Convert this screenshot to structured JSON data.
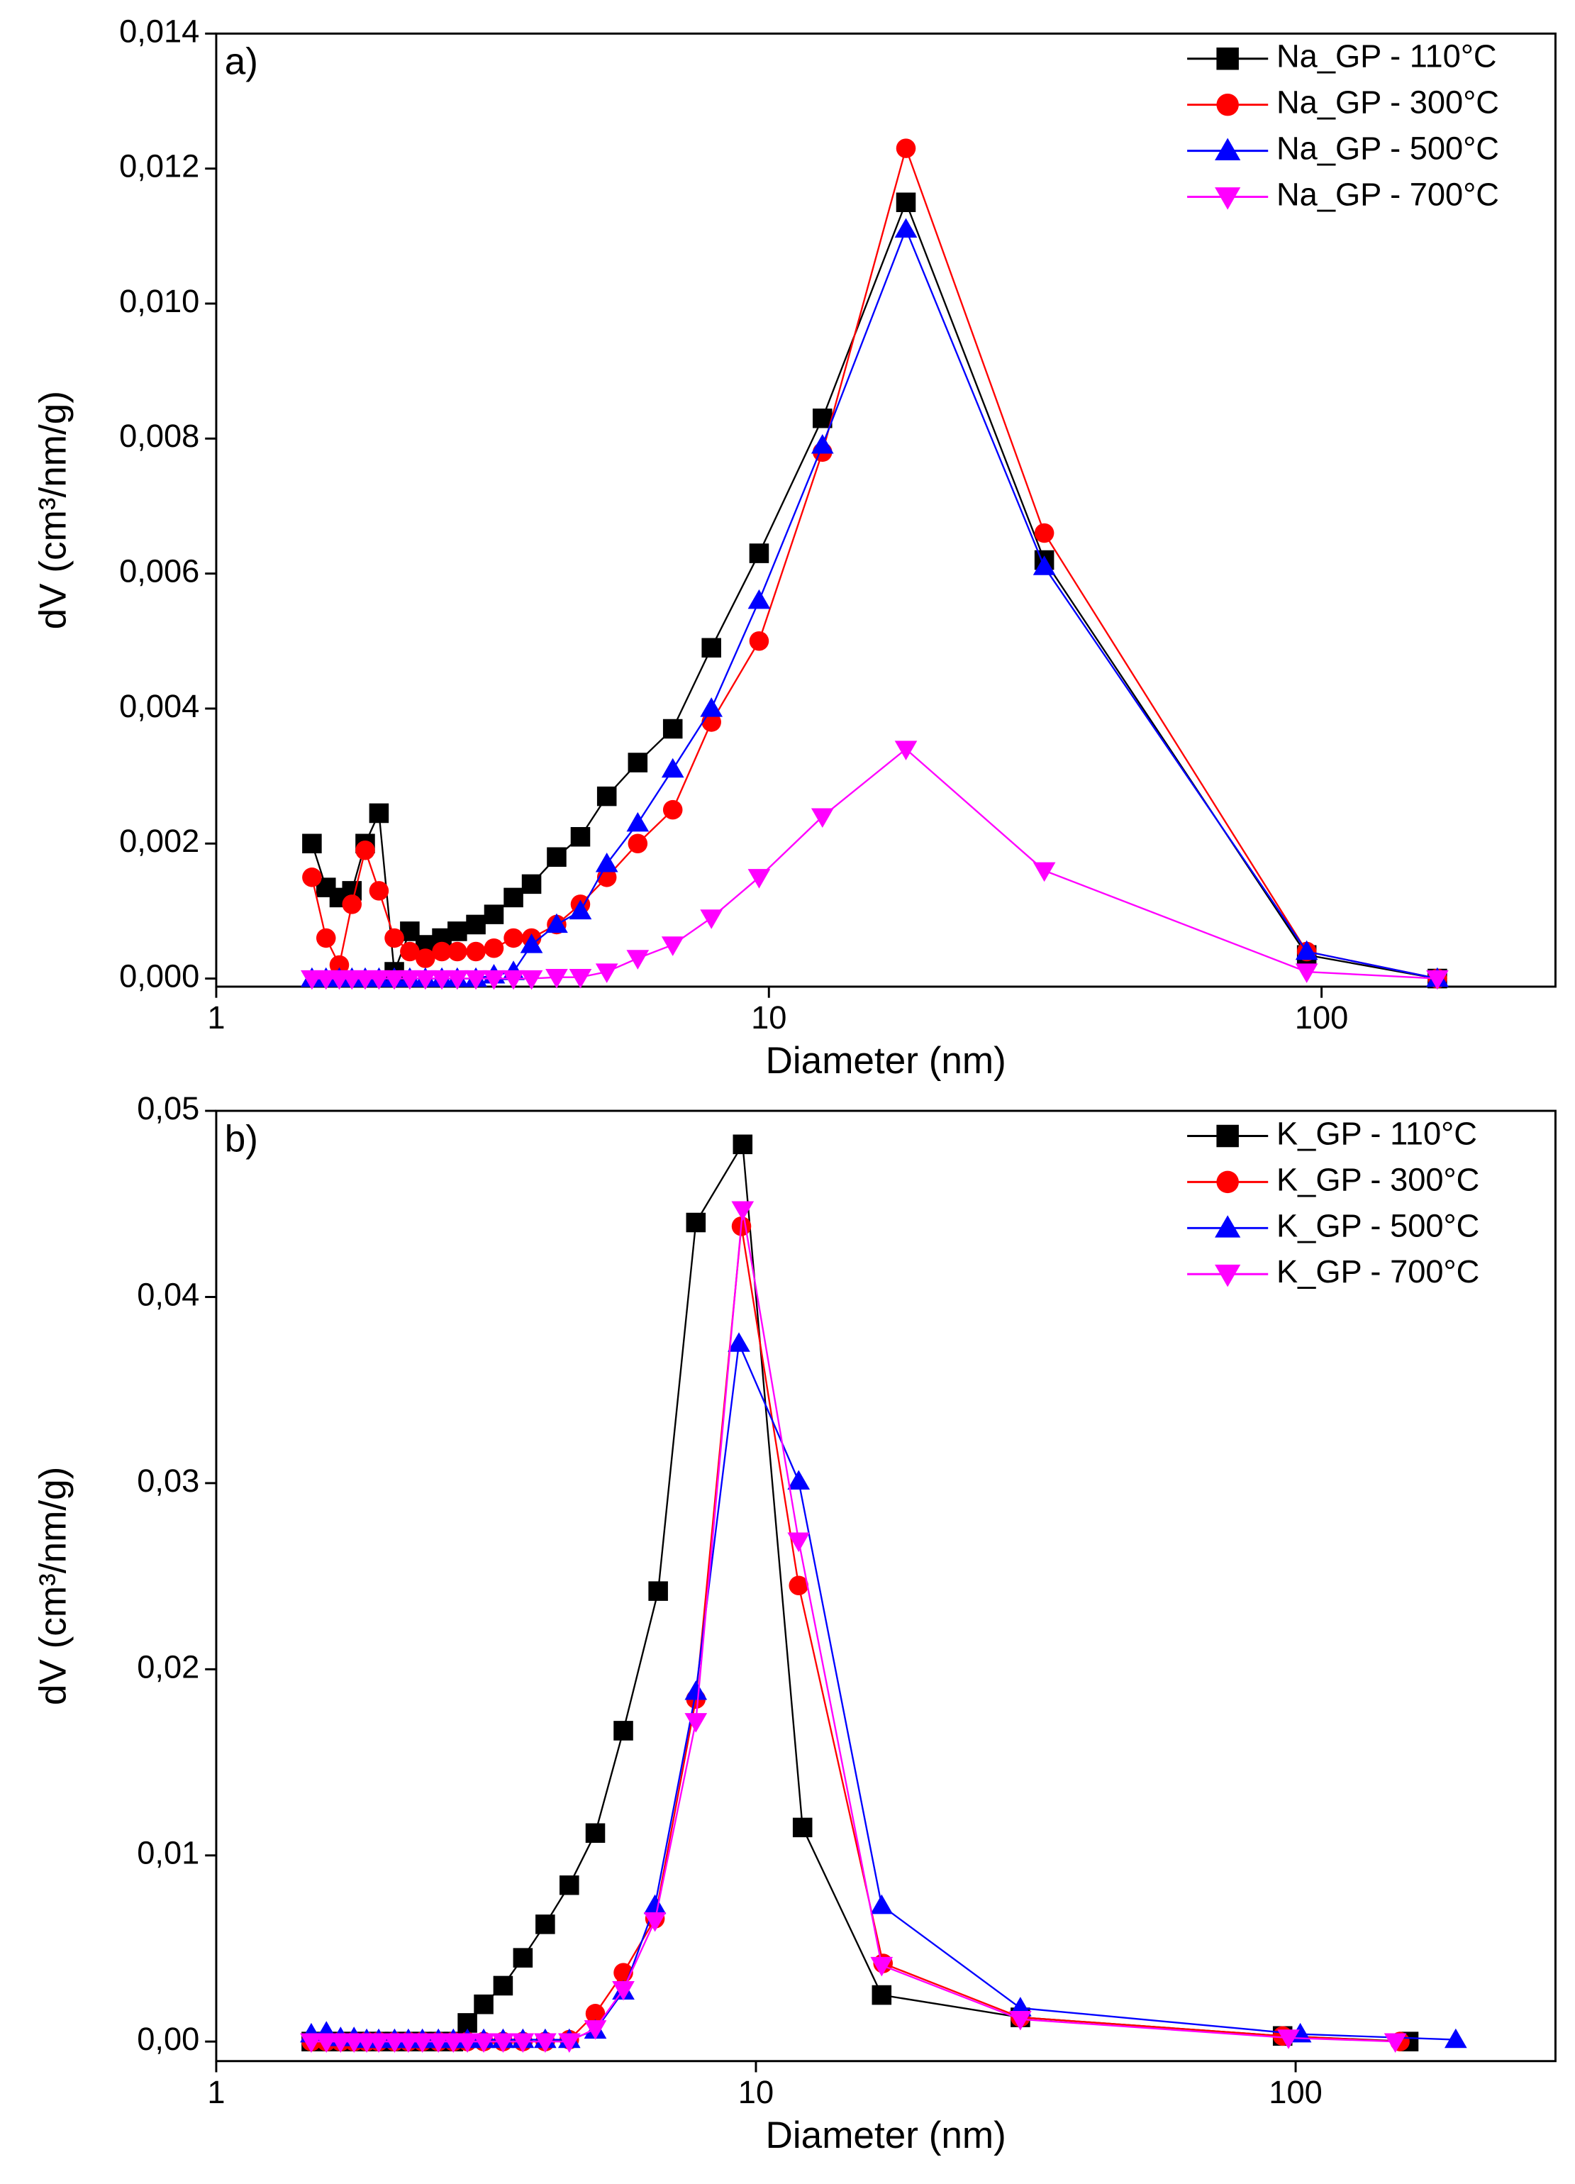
{
  "chart_data": [
    {
      "type": "line",
      "annotation": "a)",
      "x_label": "Diameter (nm)",
      "y_label": "dV (cm³/nm/g)",
      "log_x": true,
      "xlim": [
        1,
        265
      ],
      "xticks": [
        1,
        10,
        100
      ],
      "ylim": [
        -0.00012,
        0.014
      ],
      "yticks": [
        {
          "value": 0,
          "label": "0,000"
        },
        {
          "value": 0.002,
          "label": "0,002"
        },
        {
          "value": 0.004,
          "label": "0,004"
        },
        {
          "value": 0.006,
          "label": "0,006"
        },
        {
          "value": 0.008,
          "label": "0,008"
        },
        {
          "value": 0.01,
          "label": "0,010"
        },
        {
          "value": 0.012,
          "label": "0,012"
        },
        {
          "value": 0.014,
          "label": "0,014"
        }
      ],
      "legend": "upper right",
      "x": [
        1.49,
        1.58,
        1.67,
        1.76,
        1.86,
        1.97,
        2.1,
        2.24,
        2.39,
        2.56,
        2.73,
        2.95,
        3.18,
        3.45,
        3.72,
        4.13,
        4.56,
        5.09,
        5.79,
        6.7,
        7.87,
        9.6,
        12.5,
        17.7,
        31.5,
        94,
        162
      ],
      "series": [
        {
          "name": "Na_GP - 110°C",
          "color": "#000000",
          "marker": "square",
          "values": [
            0.002,
            0.00135,
            0.0012,
            0.0013,
            0.002,
            0.00245,
            0.0001,
            0.0007,
            0.0005,
            0.0006,
            0.0007,
            0.0008,
            0.00095,
            0.0012,
            0.0014,
            0.0018,
            0.0021,
            0.0027,
            0.0032,
            0.0037,
            0.0049,
            0.0063,
            0.0083,
            0.0115,
            0.0062,
            0.00035,
            0
          ]
        },
        {
          "name": "Na_GP - 300°C",
          "color": "#ff0000",
          "marker": "circle",
          "values": [
            0.0015,
            0.0006,
            0.0002,
            0.0011,
            0.0019,
            0.0013,
            0.0006,
            0.0004,
            0.0003,
            0.0004,
            0.0004,
            0.0004,
            0.00045,
            0.0006,
            0.0006,
            0.0008,
            0.0011,
            0.0015,
            0.002,
            0.0025,
            0.0038,
            0.005,
            0.0078,
            0.0123,
            0.0066,
            0.0004,
            0
          ]
        },
        {
          "name": "Na_GP - 500°C",
          "color": "#0000ff",
          "marker": "triangle-up",
          "values": [
            0,
            0,
            0,
            0,
            0,
            0,
            0,
            0,
            0,
            0,
            0,
            0,
            5e-05,
            0.0001,
            0.0005,
            0.0008,
            0.001,
            0.0017,
            0.0023,
            0.0031,
            0.004,
            0.0056,
            0.0079,
            0.0111,
            0.0061,
            0.0004,
            0
          ]
        },
        {
          "name": "Na_GP - 700°C",
          "color": "#ff00ff",
          "marker": "triangle-down",
          "values": [
            0,
            0,
            0,
            0,
            0,
            0,
            0,
            0,
            0,
            0,
            0,
            0,
            0,
            0,
            0,
            2e-05,
            2e-05,
            0.0001,
            0.0003,
            0.0005,
            0.0009,
            0.0015,
            0.0024,
            0.0034,
            0.0016,
            0.0001,
            0
          ]
        }
      ]
    },
    {
      "type": "line",
      "annotation": "b)",
      "x_label": "Diameter (nm)",
      "y_label": "dV (cm³/nm/g)",
      "log_x": true,
      "xlim": [
        1,
        303
      ],
      "xticks": [
        1,
        10,
        100
      ],
      "ylim": [
        -0.00105,
        0.05
      ],
      "yticks": [
        {
          "value": 0,
          "label": "0,00"
        },
        {
          "value": 0.01,
          "label": "0,01"
        },
        {
          "value": 0.02,
          "label": "0,02"
        },
        {
          "value": 0.03,
          "label": "0,03"
        },
        {
          "value": 0.04,
          "label": "0,04"
        },
        {
          "value": 0.05,
          "label": "0,05"
        }
      ],
      "legend": "upper right",
      "series": [
        {
          "name": "K_GP - 110°C",
          "color": "#000000",
          "marker": "square",
          "x": [
            1.5,
            1.6,
            1.7,
            1.8,
            1.9,
            2.0,
            2.14,
            2.27,
            2.41,
            2.58,
            2.75,
            2.92,
            3.13,
            3.4,
            3.7,
            4.07,
            4.51,
            5.04,
            5.68,
            6.59,
            7.74,
            9.45,
            12.2,
            17.1,
            30.9,
            94.6,
            162
          ],
          "values": [
            0,
            0,
            0,
            0,
            0,
            0,
            0,
            0,
            0,
            0,
            0,
            0.001,
            0.002,
            0.003,
            0.0045,
            0.0063,
            0.0084,
            0.0112,
            0.0167,
            0.0242,
            0.044,
            0.0482,
            0.0115,
            0.0025,
            0.0013,
            0.0003,
            0
          ]
        },
        {
          "name": "K_GP - 300°C",
          "color": "#ff0000",
          "marker": "circle",
          "x": [
            1.5,
            1.6,
            1.7,
            1.8,
            1.9,
            2.0,
            2.14,
            2.27,
            2.41,
            2.58,
            2.75,
            2.92,
            3.13,
            3.4,
            3.7,
            4.07,
            4.51,
            5.04,
            5.68,
            6.5,
            7.74,
            9.4,
            12.0,
            17.2,
            30.9,
            94.6,
            156
          ],
          "values": [
            0,
            0,
            0,
            0,
            0,
            0,
            0,
            0,
            0,
            0,
            0,
            0,
            0,
            0,
            0,
            0,
            0.0001,
            0.0015,
            0.0037,
            0.0066,
            0.0184,
            0.0438,
            0.0245,
            0.0042,
            0.0013,
            0.0003,
            0
          ]
        },
        {
          "name": "K_GP - 500°C",
          "color": "#0000ff",
          "marker": "triangle-up",
          "x": [
            1.5,
            1.6,
            1.7,
            1.8,
            1.9,
            2.0,
            2.14,
            2.27,
            2.41,
            2.58,
            2.75,
            2.92,
            3.13,
            3.4,
            3.7,
            4.07,
            4.51,
            5.04,
            5.68,
            6.5,
            7.74,
            9.3,
            12.0,
            17.1,
            30.9,
            102,
            198
          ],
          "values": [
            0.0004,
            0.0005,
            0.0002,
            0.0002,
            0.0001,
            0.0001,
            0.0001,
            0.0001,
            0.0001,
            0.0001,
            0.0001,
            0.0001,
            0.0001,
            0.0001,
            0.0001,
            0.0001,
            0.0001,
            0.0006,
            0.0027,
            0.0073,
            0.0188,
            0.0375,
            0.0301,
            0.0073,
            0.0018,
            0.0004,
            0.0001
          ]
        },
        {
          "name": "K_GP - 700°C",
          "color": "#ff00ff",
          "marker": "triangle-down",
          "x": [
            1.5,
            1.6,
            1.7,
            1.8,
            1.9,
            2.0,
            2.14,
            2.27,
            2.41,
            2.58,
            2.75,
            2.92,
            3.13,
            3.4,
            3.7,
            4.07,
            4.51,
            5.04,
            5.68,
            6.5,
            7.74,
            9.45,
            12.0,
            17.1,
            30.9,
            97,
            153
          ],
          "values": [
            0,
            0,
            0,
            0,
            0,
            0,
            0,
            0,
            0,
            0,
            0,
            0,
            0,
            0,
            0,
            0,
            0,
            0.0007,
            0.0028,
            0.0065,
            0.0172,
            0.0447,
            0.0269,
            0.0041,
            0.0012,
            0.0002,
            0
          ]
        }
      ]
    }
  ]
}
